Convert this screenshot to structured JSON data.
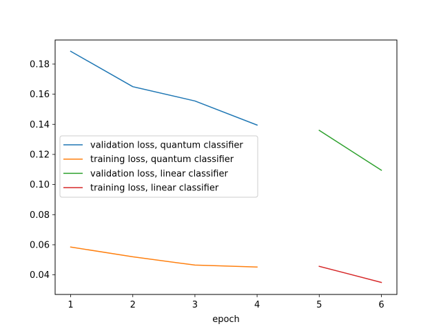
{
  "chart_data": {
    "type": "line",
    "xlabel": "epoch",
    "ylabel": "",
    "xlim": [
      0.75,
      6.25
    ],
    "ylim": [
      0.027,
      0.196
    ],
    "xticks": [
      1,
      2,
      3,
      4,
      5,
      6
    ],
    "yticks": [
      0.04,
      0.06,
      0.08,
      0.1,
      0.12,
      0.14,
      0.16,
      0.18
    ],
    "ytick_labels": [
      "0.04",
      "0.06",
      "0.08",
      "0.10",
      "0.12",
      "0.14",
      "0.16",
      "0.18"
    ],
    "xtick_labels": [
      "1",
      "2",
      "3",
      "4",
      "5",
      "6"
    ],
    "grid": false,
    "legend_position": "center-left",
    "series": [
      {
        "name": "validation loss, quantum classifier",
        "color": "#1f77b4",
        "x": [
          1,
          2,
          3,
          4
        ],
        "y": [
          0.1885,
          0.165,
          0.1555,
          0.1395
        ]
      },
      {
        "name": "training loss, quantum classifier",
        "color": "#ff7f0e",
        "x": [
          1,
          2,
          3,
          4
        ],
        "y": [
          0.0585,
          0.052,
          0.0465,
          0.0452
        ]
      },
      {
        "name": "validation loss, linear classifier",
        "color": "#2ca02c",
        "x": [
          5,
          6
        ],
        "y": [
          0.136,
          0.1095
        ]
      },
      {
        "name": "training loss, linear classifier",
        "color": "#d62728",
        "x": [
          5,
          6
        ],
        "y": [
          0.0457,
          0.035
        ]
      }
    ]
  }
}
